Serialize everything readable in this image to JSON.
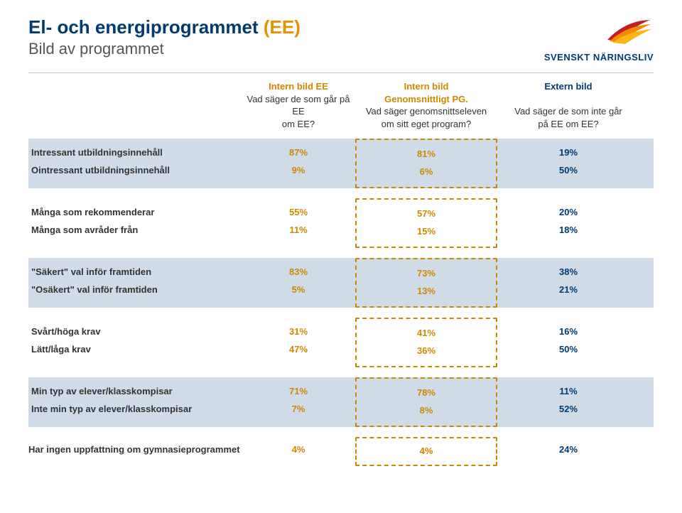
{
  "title": {
    "main": "El- och energiprogrammet",
    "accent": "(EE)",
    "subtitle": "Bild av programmet"
  },
  "logo": {
    "text": "SVENSKT NÄRINGSLIV",
    "colors": {
      "red": "#c61d23",
      "orange": "#f18a00",
      "yellow": "#fbb615",
      "navy": "#003a6f"
    }
  },
  "columns": {
    "c1": {
      "heading": "Intern bild EE",
      "desc1": "Vad säger de som går på EE",
      "desc2": "om EE?",
      "color": "orange"
    },
    "c2": {
      "heading": "Intern bild",
      "heading2": "Genomsnittligt PG.",
      "desc1": "Vad säger genomsnittseleven",
      "desc2": "om sitt eget program?",
      "color": "orange"
    },
    "c3": {
      "heading": "Extern bild",
      "heading2": "",
      "desc1": "Vad säger de som inte går",
      "desc2": "på EE om EE?",
      "color": "navy"
    }
  },
  "sections": [
    {
      "bg": true,
      "rows": [
        {
          "label": "Intressant utbildningsinnehåll",
          "c1": "87%",
          "c2": "81%",
          "c3": "19%"
        },
        {
          "label": "Ointressant utbildningsinnehåll",
          "c1": "9%",
          "c2": "6%",
          "c3": "50%"
        }
      ]
    },
    {
      "bg": false,
      "rows": [
        {
          "label": "Många som rekommenderar",
          "c1": "55%",
          "c2": "57%",
          "c3": "20%"
        },
        {
          "label": "Många som avråder från",
          "c1": "11%",
          "c2": "15%",
          "c3": "18%"
        }
      ]
    },
    {
      "bg": true,
      "rows": [
        {
          "label": "\"Säkert\" val inför framtiden",
          "c1": "83%",
          "c2": "73%",
          "c3": "38%"
        },
        {
          "label": "\"Osäkert\" val inför framtiden",
          "c1": "5%",
          "c2": "13%",
          "c3": "21%"
        }
      ]
    },
    {
      "bg": false,
      "rows": [
        {
          "label": "Svårt/höga krav",
          "c1": "31%",
          "c2": "41%",
          "c3": "16%"
        },
        {
          "label": "Lätt/låga krav",
          "c1": "47%",
          "c2": "36%",
          "c3": "50%"
        }
      ]
    },
    {
      "bg": true,
      "rows": [
        {
          "label": "Min typ av elever/klasskompisar",
          "c1": "71%",
          "c2": "78%",
          "c3": "11%"
        },
        {
          "label": "Inte min typ av elever/klasskompisar",
          "c1": "7%",
          "c2": "8%",
          "c3": "52%"
        }
      ]
    },
    {
      "bg": false,
      "rows": [
        {
          "label": "Har ingen uppfattning om gymnasieprogrammet",
          "c1": "4%",
          "c2": "4%",
          "c3": "24%"
        }
      ]
    }
  ],
  "colors": {
    "navy": "#003a6f",
    "orange": "#d18700",
    "accentTitle": "#e29400",
    "sectionBg": "#cfdce7",
    "divider": "#c9c9c9"
  }
}
